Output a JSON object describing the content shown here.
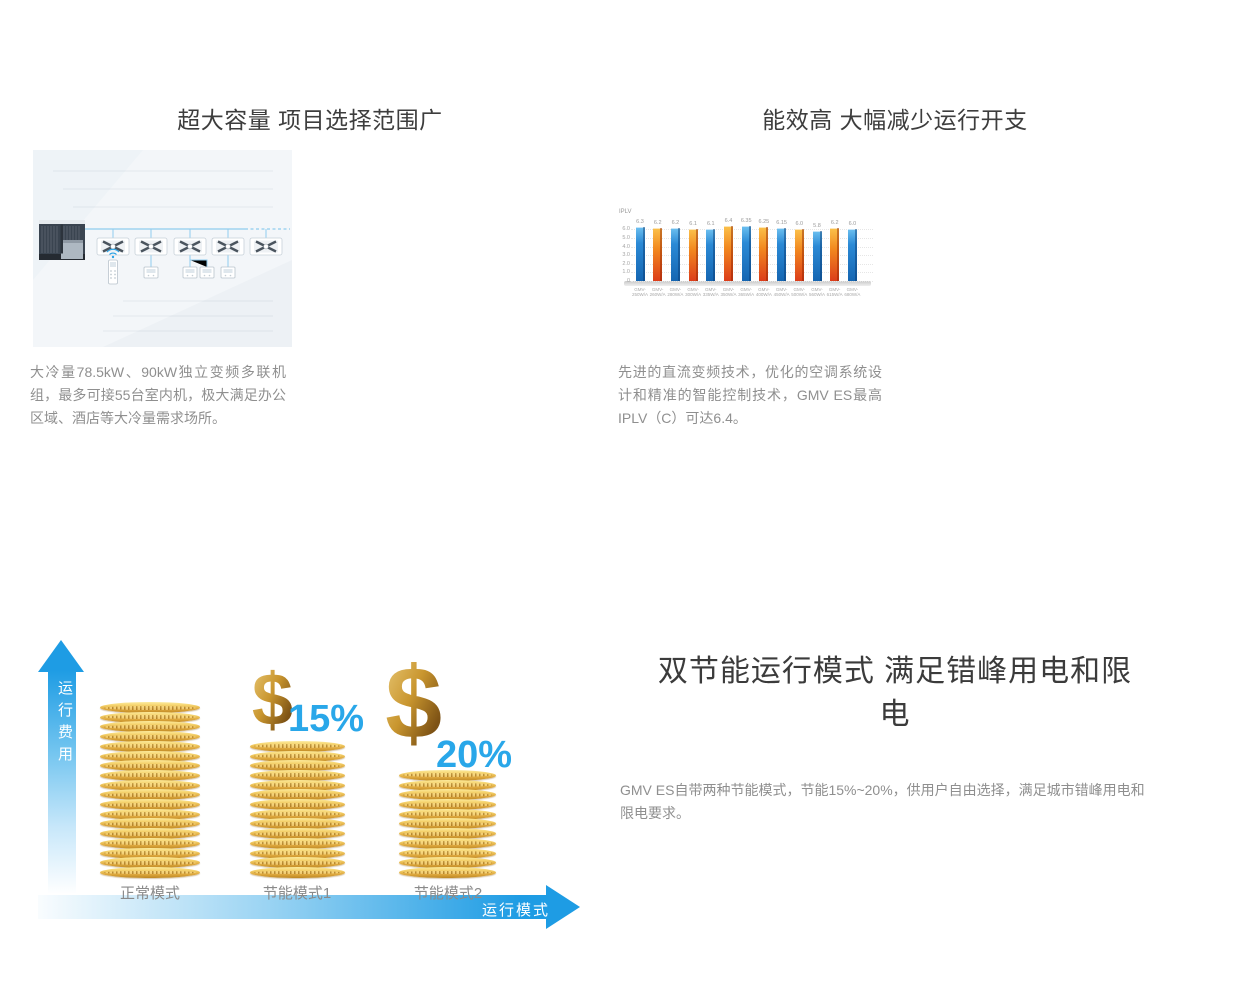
{
  "page": {
    "background": "#ffffff"
  },
  "features": {
    "capacity": {
      "title": "超大容量 项目选择范围广",
      "body": "大冷量78.5kW、90kW独立变频多联机组，最多可接55台室内机，极大满足办公区域、酒店等大冷量需求场所。"
    },
    "efficiency": {
      "title": "能效高 大幅减少运行开支",
      "body": "先进的直流变频技术，优化的空调系统设计和精准的智能控制技术，GMV ES最高IPLV（C）可达6.4。"
    },
    "dual_mode": {
      "title": "双节能运行模式 满足错峰用电和限电",
      "body": "GMV ES自带两种节能模式，节能15%~20%，供用户自由选择，满足城市错峰用电和限电要求。"
    }
  },
  "chart_data": {
    "type": "bar",
    "title": "",
    "ylabel": "IPLV",
    "xlabel": "",
    "ylim": [
      0,
      6.6
    ],
    "yticks": [
      0,
      1.0,
      2.0,
      3.0,
      4.0,
      5.0,
      6.0
    ],
    "grid": true,
    "legend": false,
    "categories": [
      "GMV-250W/A",
      "GMV-260W/A",
      "GMV-280W/A",
      "GMV-300W/A",
      "GMV-335W/A",
      "GMV-350W/A",
      "GMV-365W/A",
      "GMV-400W/A",
      "GMV-450W/A",
      "GMV-500W/A",
      "GMV-560W/A",
      "GMV-615W/A",
      "GMV-680W/A"
    ],
    "values": [
      6.3,
      6.2,
      6.2,
      6.1,
      6.1,
      6.4,
      6.35,
      6.25,
      6.15,
      6.0,
      5.8,
      6.2,
      6.0
    ],
    "value_labels": [
      "6.3",
      "6.2",
      "6.2",
      "6.1",
      "6.1",
      "6.4",
      "6.35",
      "6.25",
      "6.15",
      "6.0",
      "5.8",
      "6.2",
      "6.0"
    ],
    "bar_colors": [
      "#1f7fd0",
      "#f0871e"
    ]
  },
  "coin_chart": {
    "y_axis_label": "运行费用",
    "x_axis_label": "运行模式",
    "currency_symbol": "$",
    "accent_blue": "#29a7e9",
    "gold": "#c9962f",
    "stacks": [
      {
        "label": "正常模式",
        "coins": 18,
        "saving": ""
      },
      {
        "label": "节能模式1",
        "coins": 14,
        "saving": "15%"
      },
      {
        "label": "节能模式2",
        "coins": 11,
        "saving": "20%"
      }
    ]
  }
}
